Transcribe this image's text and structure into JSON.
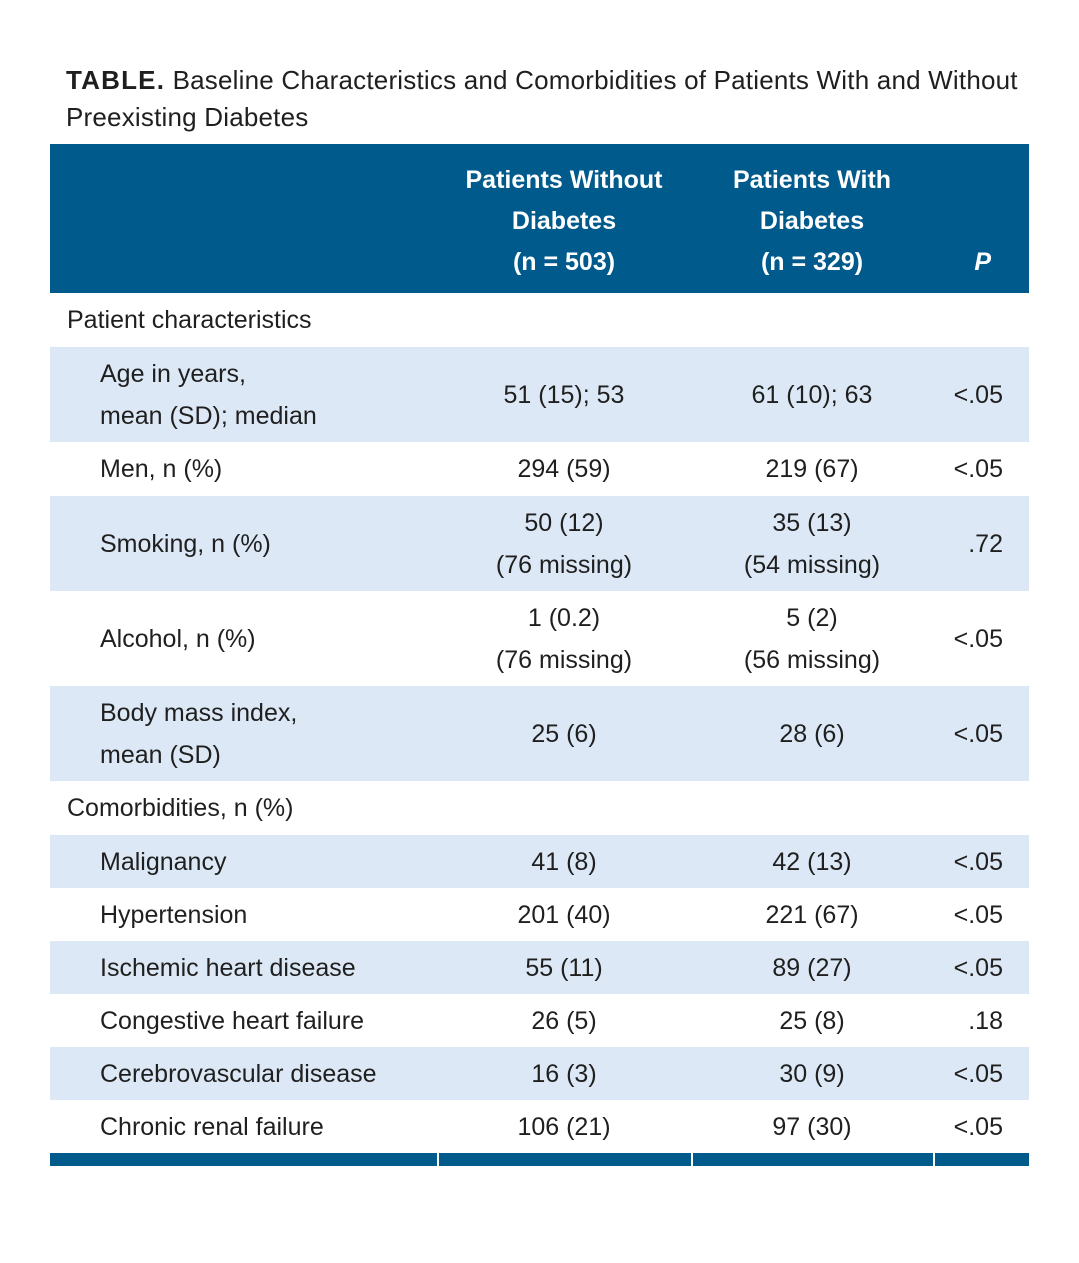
{
  "caption": {
    "label": "TABLE.",
    "text": "Baseline Characteristics and Comorbidities of Patients With and Without Preexisting Diabetes"
  },
  "header": {
    "col1": "",
    "col2": [
      "Patients Without",
      "Diabetes",
      "(n = 503)"
    ],
    "col3": [
      "Patients With",
      "Diabetes",
      "(n = 329)"
    ],
    "col4": "P"
  },
  "sections": [
    {
      "title": "Patient characteristics",
      "rows": [
        {
          "name": [
            "Age in years,",
            "mean (SD); median"
          ],
          "without": [
            "51 (15); 53"
          ],
          "with": [
            "61 (10); 63"
          ],
          "p": "<.05"
        },
        {
          "name": [
            "Men, n (%)"
          ],
          "without": [
            "294 (59)"
          ],
          "with": [
            "219 (67)"
          ],
          "p": "<.05"
        },
        {
          "name": [
            "Smoking, n (%)"
          ],
          "without": [
            "50 (12)",
            "(76 missing)"
          ],
          "with": [
            "35 (13)",
            "(54 missing)"
          ],
          "p": ".72"
        },
        {
          "name": [
            "Alcohol, n (%)"
          ],
          "without": [
            "1 (0.2)",
            "(76 missing)"
          ],
          "with": [
            "5 (2)",
            "(56 missing)"
          ],
          "p": "<.05"
        },
        {
          "name": [
            "Body mass index,",
            "mean (SD)"
          ],
          "without": [
            "25 (6)"
          ],
          "with": [
            "28 (6)"
          ],
          "p": "<.05"
        }
      ]
    },
    {
      "title": "Comorbidities, n (%)",
      "rows": [
        {
          "name": [
            "Malignancy"
          ],
          "without": [
            "41 (8)"
          ],
          "with": [
            "42 (13)"
          ],
          "p": "<.05"
        },
        {
          "name": [
            "Hypertension"
          ],
          "without": [
            "201 (40)"
          ],
          "with": [
            "221 (67)"
          ],
          "p": "<.05"
        },
        {
          "name": [
            "Ischemic heart disease"
          ],
          "without": [
            "55 (11)"
          ],
          "with": [
            "89 (27)"
          ],
          "p": "<.05"
        },
        {
          "name": [
            "Congestive heart failure"
          ],
          "without": [
            "26 (5)"
          ],
          "with": [
            "25 (8)"
          ],
          "p": ".18"
        },
        {
          "name": [
            "Cerebrovascular disease"
          ],
          "without": [
            "16 (3)"
          ],
          "with": [
            "30 (9)"
          ],
          "p": "<.05"
        },
        {
          "name": [
            "Chronic renal failure"
          ],
          "without": [
            "106 (21)"
          ],
          "with": [
            "97 (30)"
          ],
          "p": "<.05"
        }
      ]
    }
  ],
  "colors": {
    "header_bg": "#005a8c",
    "row_shade": "#dce8f5"
  }
}
